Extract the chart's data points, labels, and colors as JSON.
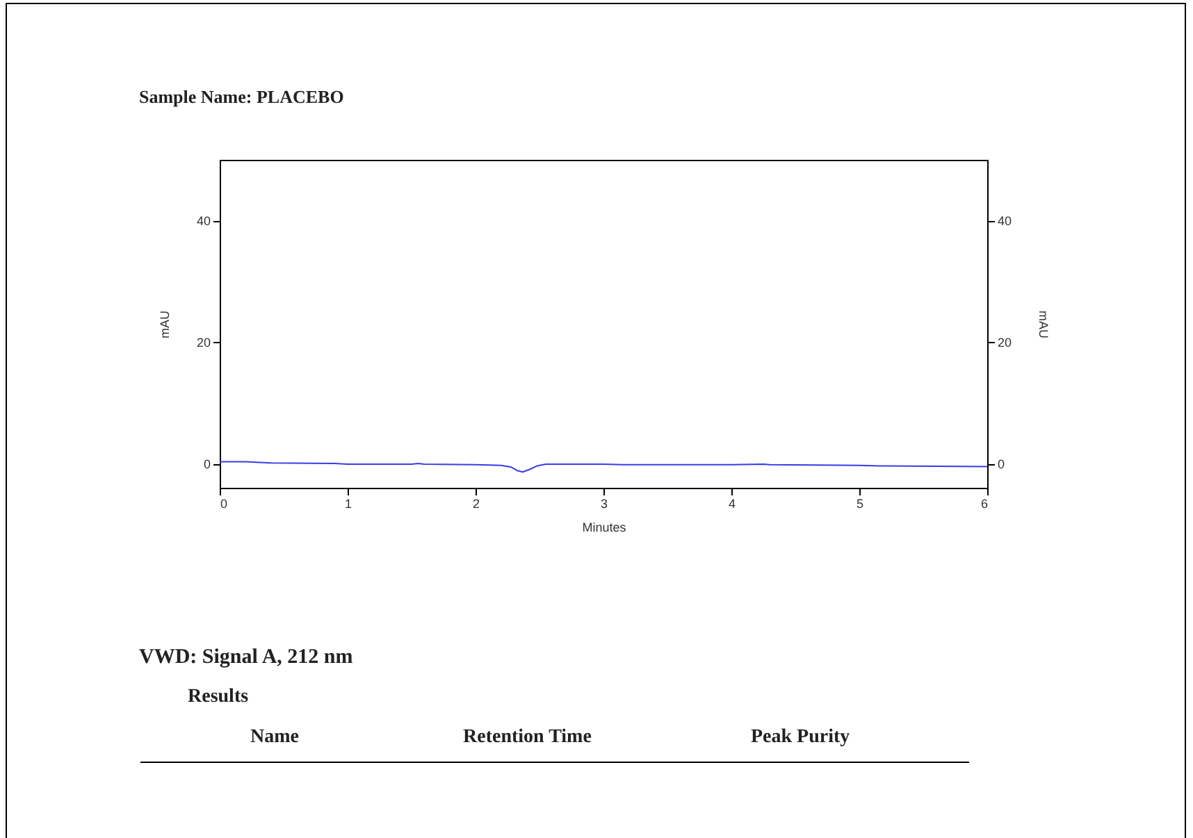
{
  "chart_data": {
    "type": "line",
    "title": "Sample Name: PLACEBO",
    "xlabel": "Minutes",
    "ylabel": "mAU",
    "y2label": "mAU",
    "x": [
      0,
      0.2,
      0.4,
      0.9,
      1.0,
      1.5,
      1.55,
      1.6,
      2.0,
      2.2,
      2.28,
      2.33,
      2.37,
      2.42,
      2.48,
      2.55,
      3.0,
      3.15,
      4.0,
      4.25,
      4.3,
      5.0,
      5.15,
      6.0
    ],
    "series": [
      {
        "color": "#3a3ae8",
        "values": [
          0.3,
          0.3,
          0.1,
          0.0,
          -0.1,
          -0.1,
          0.0,
          -0.1,
          -0.2,
          -0.3,
          -0.6,
          -1.2,
          -1.4,
          -1.0,
          -0.4,
          -0.1,
          -0.1,
          -0.2,
          -0.2,
          -0.1,
          -0.2,
          -0.3,
          -0.4,
          -0.5
        ]
      }
    ],
    "xlim": [
      0,
      6
    ],
    "xticks": [
      0,
      1,
      2,
      3,
      4,
      5,
      6
    ],
    "ylim": [
      -4,
      50
    ],
    "yticks": [
      0,
      20,
      40
    ],
    "y2lim": [
      -4,
      50
    ],
    "y2ticks": [
      0,
      20,
      40
    ],
    "grid": false,
    "marker": "none",
    "line_style": "solid",
    "annotations": [
      "VWD: Signal A, 212 nm",
      "Results",
      "Name",
      "Retention Time",
      "Peak Purity"
    ]
  }
}
